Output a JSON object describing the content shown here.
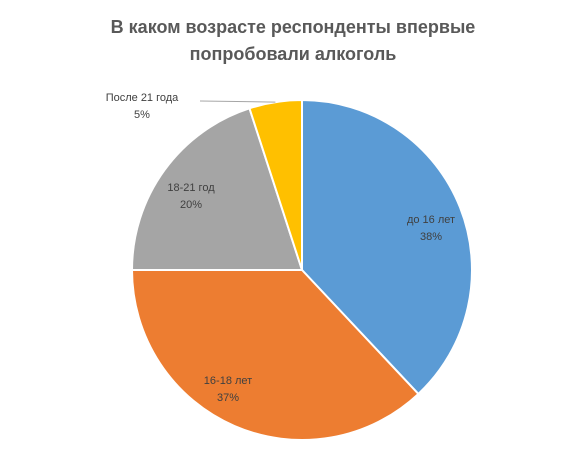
{
  "chart_data": {
    "type": "pie",
    "title": [
      "В каком возрасте респонденты впервые",
      "попробовали алкоголь"
    ],
    "slices": [
      {
        "category": "до 16 лет",
        "value": 38,
        "value_label": "38%",
        "color": "#5b9bd5"
      },
      {
        "category": "16-18 лет",
        "value": 37,
        "value_label": "37%",
        "color": "#ed7d31"
      },
      {
        "category": "18-21 год",
        "value": 20,
        "value_label": "20%",
        "color": "#a5a5a5"
      },
      {
        "category": "После 21 года",
        "value": 5,
        "value_label": "5%",
        "color": "#ffc000"
      }
    ],
    "legend": "none",
    "labels": "category and percentage on slices; leader line for smallest slice"
  }
}
